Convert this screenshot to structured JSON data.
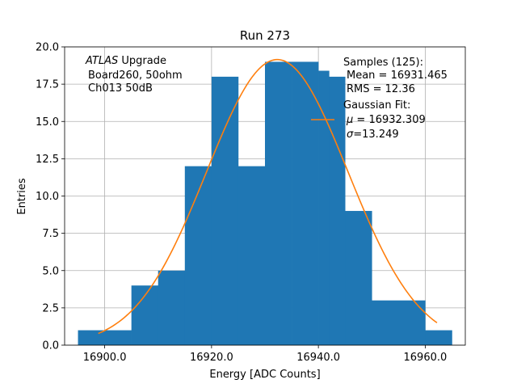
{
  "chart_data": {
    "type": "bar",
    "title": "Run 273",
    "xlabel": "Energy [ADC Counts]",
    "ylabel": "Entries",
    "xlim": [
      16892.5,
      16967.5
    ],
    "ylim": [
      0,
      20
    ],
    "grid": true,
    "x_ticks": [
      16900,
      16920,
      16940,
      16960
    ],
    "x_tick_labels": [
      "16900.0",
      "16920.0",
      "16940.0",
      "16960.0"
    ],
    "y_ticks": [
      0,
      2.5,
      5,
      7.5,
      10,
      12.5,
      15,
      17.5,
      20
    ],
    "y_tick_labels": [
      "0.0",
      "2.5",
      "5.0",
      "7.5",
      "10.0",
      "12.5",
      "15.0",
      "17.5",
      "20.0"
    ],
    "histogram": {
      "color": "#1f77b4",
      "bins": [
        {
          "x0": 16895,
          "x1": 16905,
          "count": 1
        },
        {
          "x0": 16905,
          "x1": 16910,
          "count": 4
        },
        {
          "x0": 16910,
          "x1": 16915,
          "count": 5
        },
        {
          "x0": 16915,
          "x1": 16920,
          "count": 12
        },
        {
          "x0": 16920,
          "x1": 16925,
          "count": 18
        },
        {
          "x0": 16925,
          "x1": 16930,
          "count": 12
        },
        {
          "x0": 16930,
          "x1": 16935,
          "count": 19
        },
        {
          "x0": 16935,
          "x1": 16940,
          "count": 19
        },
        {
          "x0": 16940,
          "x1": 16942,
          "count": 18.4
        },
        {
          "x0": 16942,
          "x1": 16945,
          "count": 18
        },
        {
          "x0": 16945,
          "x1": 16950,
          "count": 9
        },
        {
          "x0": 16950,
          "x1": 16960,
          "count": 3
        },
        {
          "x0": 16960,
          "x1": 16965,
          "count": 1
        }
      ]
    },
    "fit": {
      "type": "gaussian",
      "color": "#ff7f0e",
      "mu": 16932.309,
      "sigma": 13.249,
      "amplitude": 19.15,
      "x_range": [
        16898.8,
        16962.2
      ]
    },
    "annotations": {
      "experiment_italic": "ATLAS",
      "experiment_rest": " Upgrade",
      "board": "Board260, 50ohm",
      "channel": "Ch013 50dB"
    },
    "legend": {
      "placement": "top-right",
      "samples": "Samples (125):",
      "mean": "Mean = 16931.465",
      "rms": "RMS = 12.36",
      "fit_title": "Gaussian Fit:",
      "mu_symbol": "μ",
      "mu_text": " = 16932.309",
      "sigma_symbol": "σ",
      "sigma_text": "=13.249"
    }
  }
}
